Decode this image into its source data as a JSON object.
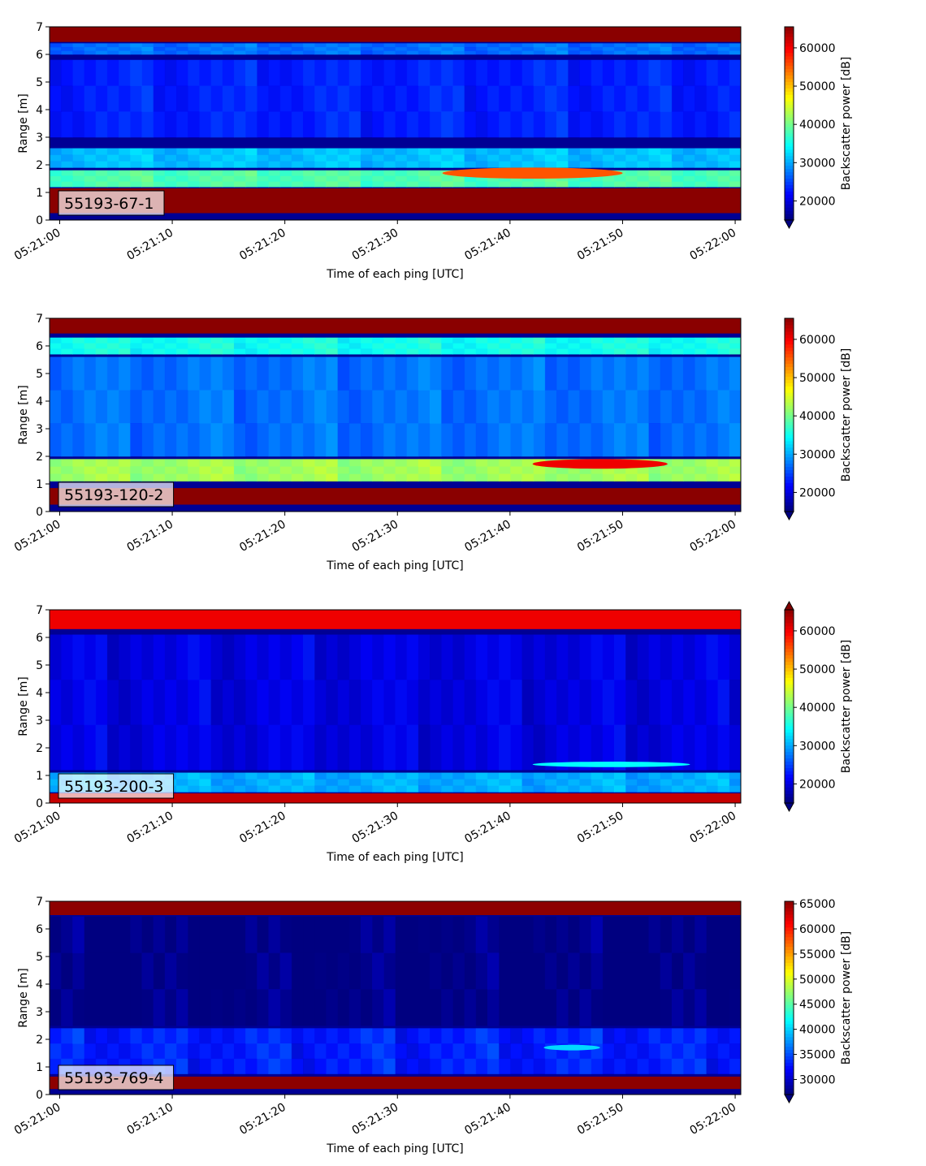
{
  "chart_data": [
    {
      "type": "heatmap",
      "label": "55193-67-1",
      "xlabel": "Time of each ping [UTC]",
      "ylabel": "Range [m]",
      "x_ticks": [
        "05:21:00",
        "05:21:10",
        "05:21:20",
        "05:21:30",
        "05:21:40",
        "05:21:50",
        "05:22:00"
      ],
      "y_ticks": [
        "0",
        "1",
        "2",
        "3",
        "4",
        "5",
        "6",
        "7"
      ],
      "ylim": [
        0,
        7
      ],
      "colorbar": {
        "label": "Backscatter power [dB]",
        "min": 15000,
        "max": 65500,
        "ticks": [
          "20000",
          "30000",
          "40000",
          "50000",
          "60000"
        ],
        "extend": "min"
      },
      "bands": [
        {
          "range": [
            6.45,
            7.0
          ],
          "level": 65000
        },
        {
          "range": [
            6.0,
            6.4
          ],
          "level": 27000
        },
        {
          "range": [
            3.0,
            5.8
          ],
          "level": 23000
        },
        {
          "range": [
            1.9,
            2.6
          ],
          "level": 31000
        },
        {
          "range": [
            1.2,
            1.8
          ],
          "level": 38000
        },
        {
          "range": [
            0.25,
            1.15
          ],
          "level": 65000
        }
      ],
      "features": [
        {
          "name": "target-echo",
          "time": [
            "05:21:34",
            "05:21:50"
          ],
          "range": [
            1.5,
            1.9
          ],
          "level": 55000
        }
      ]
    },
    {
      "type": "heatmap",
      "label": "55193-120-2",
      "xlabel": "Time of each ping [UTC]",
      "ylabel": "Range [m]",
      "x_ticks": [
        "05:21:00",
        "05:21:10",
        "05:21:20",
        "05:21:30",
        "05:21:40",
        "05:21:50",
        "05:22:00"
      ],
      "y_ticks": [
        "0",
        "1",
        "2",
        "3",
        "4",
        "5",
        "6",
        "7"
      ],
      "ylim": [
        0,
        7
      ],
      "colorbar": {
        "label": "Backscatter power [dB]",
        "min": 15000,
        "max": 65500,
        "ticks": [
          "20000",
          "30000",
          "40000",
          "50000",
          "60000"
        ],
        "extend": "min"
      },
      "bands": [
        {
          "range": [
            6.45,
            7.0
          ],
          "level": 65000
        },
        {
          "range": [
            5.7,
            6.3
          ],
          "level": 35000
        },
        {
          "range": [
            2.0,
            5.6
          ],
          "level": 27000
        },
        {
          "range": [
            1.1,
            1.9
          ],
          "level": 42000
        },
        {
          "range": [
            0.25,
            0.85
          ],
          "level": 65000
        }
      ],
      "features": [
        {
          "name": "target-echo",
          "time": [
            "05:21:42",
            "05:21:54"
          ],
          "range": [
            1.55,
            1.9
          ],
          "level": 60000
        }
      ]
    },
    {
      "type": "heatmap",
      "label": "55193-200-3",
      "xlabel": "Time of each ping [UTC]",
      "ylabel": "Range [m]",
      "x_ticks": [
        "05:21:00",
        "05:21:10",
        "05:21:20",
        "05:21:30",
        "05:21:40",
        "05:21:50",
        "05:22:00"
      ],
      "y_ticks": [
        "0",
        "1",
        "2",
        "3",
        "4",
        "5",
        "6",
        "7"
      ],
      "ylim": [
        0,
        7
      ],
      "colorbar": {
        "label": "Backscatter power [dB]",
        "min": 15000,
        "max": 65500,
        "ticks": [
          "20000",
          "30000",
          "40000",
          "50000",
          "60000"
        ],
        "extend": "both"
      },
      "bands": [
        {
          "range": [
            6.3,
            7.0
          ],
          "level": 60000
        },
        {
          "range": [
            1.2,
            6.1
          ],
          "level": 20000
        },
        {
          "range": [
            0.4,
            1.1
          ],
          "level": 30000
        },
        {
          "range": [
            0.0,
            0.35
          ],
          "level": 62000
        }
      ],
      "features": [
        {
          "name": "target-echo",
          "time": [
            "05:21:42",
            "05:21:56"
          ],
          "range": [
            1.3,
            1.5
          ],
          "level": 34000
        }
      ]
    },
    {
      "type": "heatmap",
      "label": "55193-769-4",
      "xlabel": "Time of each ping [UTC]",
      "ylabel": "Range [m]",
      "x_ticks": [
        "05:21:00",
        "05:21:10",
        "05:21:20",
        "05:21:30",
        "05:21:40",
        "05:21:50",
        "05:22:00"
      ],
      "y_ticks": [
        "0",
        "1",
        "2",
        "3",
        "4",
        "5",
        "6",
        "7"
      ],
      "ylim": [
        0,
        7
      ],
      "colorbar": {
        "label": "Backscatter power [dB]",
        "min": 27000,
        "max": 65500,
        "ticks": [
          "30000",
          "35000",
          "40000",
          "45000",
          "50000",
          "55000",
          "60000",
          "65000"
        ],
        "extend": "min"
      },
      "bands": [
        {
          "range": [
            6.5,
            7.0
          ],
          "level": 65000
        },
        {
          "range": [
            2.5,
            6.45
          ],
          "level": 27000
        },
        {
          "range": [
            0.75,
            2.4
          ],
          "level": 33000
        },
        {
          "range": [
            0.2,
            0.65
          ],
          "level": 65000
        }
      ],
      "features": [
        {
          "name": "target-echo",
          "time": [
            "05:21:43",
            "05:21:48"
          ],
          "range": [
            1.6,
            1.8
          ],
          "level": 40000
        }
      ]
    }
  ]
}
